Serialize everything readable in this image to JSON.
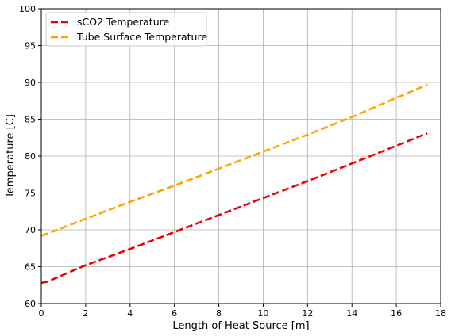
{
  "chart_data": {
    "type": "line",
    "title": "",
    "xlabel": "Length of Heat Source [m]",
    "ylabel": "Temperature [C]",
    "xlim": [
      0,
      18
    ],
    "ylim": [
      60,
      100
    ],
    "xticks": [
      0,
      2,
      4,
      6,
      8,
      10,
      12,
      14,
      16,
      18
    ],
    "yticks": [
      60,
      65,
      70,
      75,
      80,
      85,
      90,
      95,
      100
    ],
    "grid": true,
    "legend_position": "top-left",
    "series": [
      {
        "name": "sCO2 Temperature",
        "color": "#ee0000",
        "line_style": "dashed",
        "x": [
          0,
          0.3,
          2,
          4,
          6,
          8,
          10,
          12,
          14,
          16,
          17.4
        ],
        "y": [
          62.8,
          63.0,
          65.2,
          67.4,
          69.7,
          72.0,
          74.3,
          76.6,
          79.0,
          81.4,
          83.1
        ]
      },
      {
        "name": "Tube Surface Temperature",
        "color": "#ffa500",
        "line_style": "dashed",
        "x": [
          0,
          0.3,
          2,
          4,
          6,
          8,
          10,
          12,
          14,
          16,
          17.4
        ],
        "y": [
          69.2,
          69.5,
          71.5,
          73.8,
          76.0,
          78.3,
          80.6,
          82.9,
          85.3,
          87.9,
          89.7
        ]
      }
    ]
  }
}
